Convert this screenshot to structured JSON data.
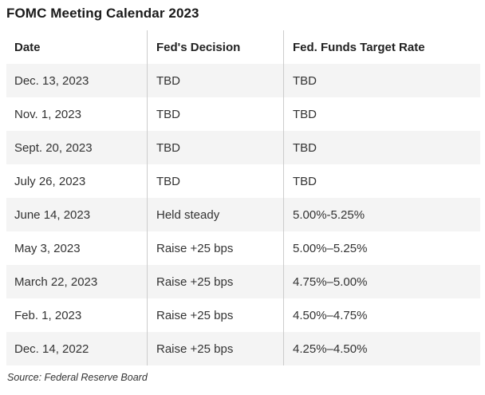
{
  "title": "FOMC Meeting Calendar 2023",
  "table": {
    "columns": [
      "Date",
      "Fed's Decision",
      "Fed. Funds Target Rate"
    ],
    "rows": [
      {
        "date": "Dec. 13, 2023",
        "decision": "TBD",
        "rate": "TBD"
      },
      {
        "date": "Nov. 1, 2023",
        "decision": "TBD",
        "rate": "TBD"
      },
      {
        "date": "Sept. 20, 2023",
        "decision": "TBD",
        "rate": "TBD"
      },
      {
        "date": "July 26, 2023",
        "decision": "TBD",
        "rate": "TBD"
      },
      {
        "date": "June 14, 2023",
        "decision": "Held steady",
        "rate": "5.00%-5.25%"
      },
      {
        "date": "May 3, 2023",
        "decision": "Raise +25 bps",
        "rate": "5.00%–5.25%"
      },
      {
        "date": "March 22, 2023",
        "decision": "Raise +25 bps",
        "rate": "4.75%–5.00%"
      },
      {
        "date": "Feb. 1, 2023",
        "decision": "Raise +25 bps",
        "rate": "4.50%–4.75%"
      },
      {
        "date": "Dec. 14, 2022",
        "decision": "Raise +25 bps",
        "rate": "4.25%–4.50%"
      }
    ]
  },
  "source": "Source: Federal Reserve Board",
  "colors": {
    "row_stripe": "#f4f4f4",
    "column_separator": "#cccccc",
    "body_text": "#333333",
    "header_text": "#222222",
    "title_text": "#1a1a1a",
    "background": "#ffffff"
  }
}
